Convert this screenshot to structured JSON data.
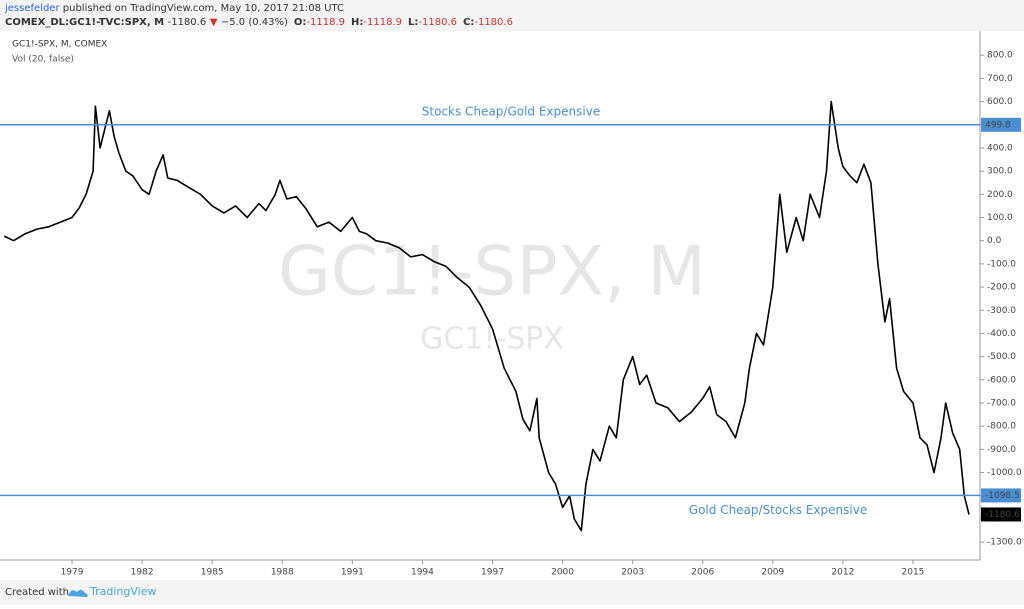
{
  "header": {
    "author": "jessefelder",
    "published": "published on TradingView.com, May 10, 2017 21:08 UTC",
    "symbol": "COMEX_DL:GC1!-TVC:SPX, M",
    "last": "-1180.6",
    "arrow": "▼",
    "change": "−5.0 (0.43%)",
    "ohlc": [
      {
        "label": "O:",
        "value": "-1118.9"
      },
      {
        "label": "H:",
        "value": "-1118.9"
      },
      {
        "label": "L:",
        "value": "-1180.6"
      },
      {
        "label": "C:",
        "value": "-1180.6"
      }
    ]
  },
  "chart_data": {
    "type": "line",
    "subtitle": "Vol (20, false)",
    "watermark": "GC1!-SPX, M",
    "watermark2": "GC1!-SPX",
    "xlim": [
      1976.13,
      2017.87
    ],
    "xticks": [
      1979,
      1982,
      1985,
      1988,
      1991,
      1994,
      1997,
      2000,
      2003,
      2006,
      2009,
      2012,
      2015
    ],
    "ylim": [
      -1377,
      900
    ],
    "yticks": [
      {
        "value": 800,
        "label": "800.0"
      },
      {
        "value": 700,
        "label": "700.0"
      },
      {
        "value": 600,
        "label": "600.0"
      },
      {
        "value": 500,
        "label": "500.0"
      },
      {
        "value": 400,
        "label": "400.0"
      },
      {
        "value": 300,
        "label": "300.0"
      },
      {
        "value": 200,
        "label": "200.0"
      },
      {
        "value": 100,
        "label": "100.0"
      },
      {
        "value": 0,
        "label": "0.0"
      },
      {
        "value": -100,
        "label": "-100.0"
      },
      {
        "value": -200,
        "label": "-200.0"
      },
      {
        "value": -300,
        "label": "-300.0"
      },
      {
        "value": -400,
        "label": "-400.0"
      },
      {
        "value": -500,
        "label": "-500.0"
      },
      {
        "value": -600,
        "label": "-600.0"
      },
      {
        "value": -700,
        "label": "-700.0"
      },
      {
        "value": -800,
        "label": "-800.0"
      },
      {
        "value": -900,
        "label": "-900.0"
      },
      {
        "value": -1000,
        "label": "-1000.0"
      },
      {
        "value": -1100,
        "label": "-1100.0"
      },
      {
        "value": -1200,
        "label": "-1200.0"
      },
      {
        "value": -1300,
        "label": "-1300.0"
      }
    ],
    "hlines": [
      {
        "value": 499.8,
        "text": "Stocks Cheap/Gold Expensive",
        "color": "#4a8fd4"
      },
      {
        "value": -1098.5,
        "text": "Gold Cheap/Stocks Expensive",
        "color": "#4a8fd4"
      }
    ],
    "series": [
      {
        "name": "GC1!-SPX, M, COMEX",
        "color": "#000000",
        "x": [
          1976.1,
          1976.5,
          1977,
          1977.5,
          1978,
          1978.5,
          1979,
          1979.3,
          1979.6,
          1979.9,
          1980,
          1980.2,
          1980.4,
          1980.6,
          1980.8,
          1981,
          1981.3,
          1981.6,
          1982,
          1982.3,
          1982.6,
          1982.9,
          1983.1,
          1983.5,
          1984,
          1984.5,
          1985,
          1985.5,
          1986,
          1986.5,
          1987,
          1987.3,
          1987.7,
          1987.9,
          1988.2,
          1988.6,
          1989,
          1989.5,
          1990,
          1990.5,
          1991,
          1991.3,
          1991.6,
          1992,
          1992.5,
          1993,
          1993.5,
          1994,
          1994.5,
          1995,
          1995.5,
          1996,
          1996.5,
          1997,
          1997.5,
          1998,
          1998.3,
          1998.6,
          1998.9,
          1999,
          1999.4,
          1999.7,
          2000,
          2000.3,
          2000.5,
          2000.8,
          2001,
          2001.3,
          2001.6,
          2002,
          2002.3,
          2002.6,
          2003,
          2003.3,
          2003.6,
          2004,
          2004.5,
          2005,
          2005.5,
          2006,
          2006.3,
          2006.6,
          2007,
          2007.4,
          2007.8,
          2008,
          2008.3,
          2008.6,
          2009,
          2009.3,
          2009.6,
          2010,
          2010.3,
          2010.6,
          2011,
          2011.3,
          2011.5,
          2011.8,
          2012,
          2012.3,
          2012.6,
          2012.9,
          2013.2,
          2013.5,
          2013.8,
          2014,
          2014.3,
          2014.6,
          2015,
          2015.3,
          2015.6,
          2015.9,
          2016.2,
          2016.4,
          2016.7,
          2017,
          2017.2,
          2017.4
        ],
        "values": [
          20,
          0,
          30,
          50,
          60,
          80,
          100,
          140,
          200,
          300,
          580,
          400,
          480,
          560,
          450,
          380,
          300,
          280,
          220,
          200,
          300,
          370,
          270,
          260,
          230,
          200,
          150,
          120,
          150,
          100,
          160,
          130,
          200,
          260,
          180,
          190,
          140,
          60,
          80,
          40,
          100,
          40,
          30,
          0,
          -10,
          -30,
          -70,
          -60,
          -90,
          -110,
          -160,
          -200,
          -280,
          -380,
          -550,
          -650,
          -770,
          -820,
          -680,
          -850,
          -1000,
          -1050,
          -1150,
          -1100,
          -1200,
          -1250,
          -1050,
          -900,
          -950,
          -800,
          -850,
          -600,
          -500,
          -620,
          -580,
          -700,
          -720,
          -780,
          -740,
          -680,
          -630,
          -750,
          -780,
          -850,
          -700,
          -550,
          -400,
          -450,
          -200,
          200,
          -50,
          100,
          0,
          200,
          100,
          300,
          600,
          400,
          320,
          280,
          250,
          330,
          250,
          -100,
          -350,
          -250,
          -550,
          -650,
          -700,
          -850,
          -880,
          -1000,
          -850,
          -700,
          -830,
          -900,
          -1100,
          -1180.6
        ]
      }
    ]
  },
  "footer": {
    "created": "Created with",
    "brand": "TradingView"
  }
}
